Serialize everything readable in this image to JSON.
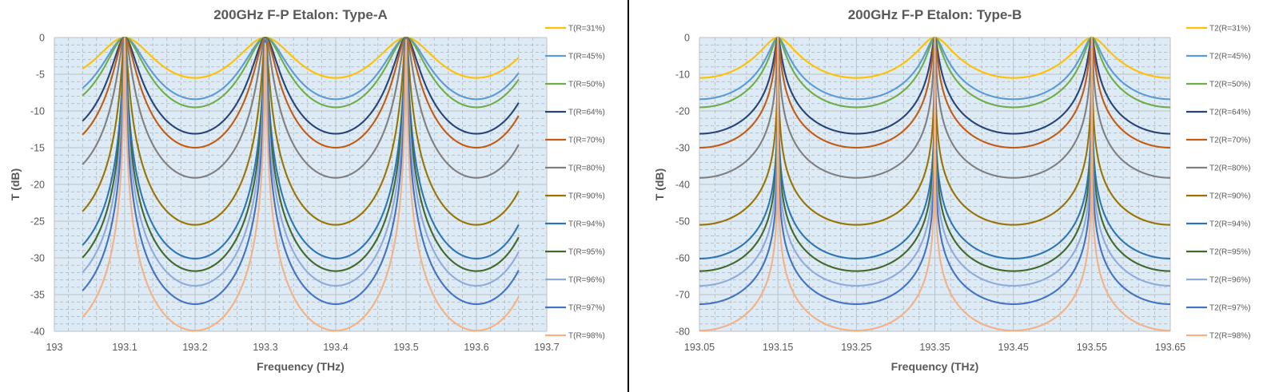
{
  "chart_data": [
    {
      "type": "line",
      "title": "200GHz F-P Etalon: Type-A",
      "xlabel": "Frequency (THz)",
      "ylabel": "T (dB)",
      "xlim": [
        193,
        193.7
      ],
      "ylim": [
        -40,
        0
      ],
      "xticks": [
        "193",
        "193.1",
        "193.2",
        "193.3",
        "193.4",
        "193.5",
        "193.6",
        "193.7"
      ],
      "yticks": [
        "0",
        "-5",
        "-10",
        "-15",
        "-20",
        "-25",
        "-30",
        "-35",
        "-40"
      ],
      "x_range": [
        193.04,
        193.66
      ],
      "peaks": [
        193.1,
        193.3,
        193.5
      ],
      "grid": true,
      "legend_position": "right",
      "series": [
        {
          "name": "T(R=31%)",
          "color": "#FFC000",
          "min_db": -5.5
        },
        {
          "name": "T(R=45%)",
          "color": "#5B9BD5",
          "min_db": -8.4
        },
        {
          "name": "T(R=50%)",
          "color": "#70AD47",
          "min_db": -9.5
        },
        {
          "name": "T(R=64%)",
          "color": "#264478",
          "min_db": -13.1
        },
        {
          "name": "T(R=70%)",
          "color": "#C55A11",
          "min_db": -15
        },
        {
          "name": "T(R=80%)",
          "color": "#7F7F7F",
          "min_db": -19.1
        },
        {
          "name": "T(R=90%)",
          "color": "#997300",
          "min_db": -25.5
        },
        {
          "name": "T(R=94%)",
          "color": "#2E75B6",
          "min_db": -30.1
        },
        {
          "name": "T(R=95%)",
          "color": "#43682B",
          "min_db": -31.8
        },
        {
          "name": "T(R=96%)",
          "color": "#8FAADC",
          "min_db": -33.8
        },
        {
          "name": "T(R=97%)",
          "color": "#4472C4",
          "min_db": -36.3
        },
        {
          "name": "T(R=98%)",
          "color": "#F4B183",
          "min_db": -39.9
        }
      ]
    },
    {
      "type": "line",
      "title": "200GHz F-P Etalon: Type-B",
      "xlabel": "Frequency (THz)",
      "ylabel": "T (dB)",
      "xlim": [
        193.05,
        193.65
      ],
      "ylim": [
        -80,
        0
      ],
      "xticks": [
        "193.05",
        "193.15",
        "193.25",
        "193.35",
        "193.45",
        "193.55",
        "193.65"
      ],
      "yticks": [
        "0",
        "-10",
        "-20",
        "-30",
        "-40",
        "-50",
        "-60",
        "-70",
        "-80"
      ],
      "x_range": [
        193.05,
        193.65
      ],
      "peaks": [
        193.15,
        193.35,
        193.55
      ],
      "grid": true,
      "legend_position": "right",
      "series": [
        {
          "name": "T2(R=31%)",
          "color": "#FFC000",
          "min_db": -11
        },
        {
          "name": "T2(R=45%)",
          "color": "#5B9BD5",
          "min_db": -16.8
        },
        {
          "name": "T2(R=50%)",
          "color": "#70AD47",
          "min_db": -19
        },
        {
          "name": "T2(R=64%)",
          "color": "#264478",
          "min_db": -26.2
        },
        {
          "name": "T2(R=70%)",
          "color": "#C55A11",
          "min_db": -30
        },
        {
          "name": "T2(R=80%)",
          "color": "#7F7F7F",
          "min_db": -38.2
        },
        {
          "name": "T2(R=90%)",
          "color": "#997300",
          "min_db": -51
        },
        {
          "name": "T2(R=94%)",
          "color": "#2E75B6",
          "min_db": -60.2
        },
        {
          "name": "T2(R=95%)",
          "color": "#43682B",
          "min_db": -63.6
        },
        {
          "name": "T2(R=96%)",
          "color": "#8FAADC",
          "min_db": -67.6
        },
        {
          "name": "T2(R=97%)",
          "color": "#4472C4",
          "min_db": -72.6
        },
        {
          "name": "T2(R=98%)",
          "color": "#F4B183",
          "min_db": -79.8
        }
      ]
    }
  ]
}
